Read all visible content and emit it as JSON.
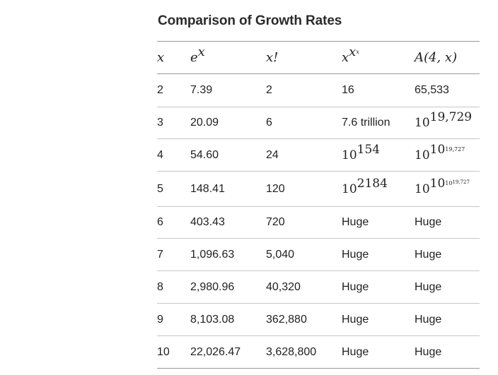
{
  "title": "Comparison of Growth Rates",
  "headers": {
    "x": "x",
    "ex_base": "e",
    "ex_exp": "x",
    "fact": "x!",
    "tet_base": "x",
    "tet_exp1": "x",
    "tet_exp2": "x",
    "ack": "A(4, x)"
  },
  "rows": [
    {
      "x": "2",
      "ex": "7.39",
      "fact": "2",
      "tet": "16",
      "ack": "65,533"
    },
    {
      "x": "3",
      "ex": "20.09",
      "fact": "6",
      "tet": "7.6 trillion",
      "ack_base": "10",
      "ack_exp": "19,729"
    },
    {
      "x": "4",
      "ex": "54.60",
      "fact": "24",
      "tet_base": "10",
      "tet_exp": "154",
      "ack_base": "10",
      "ack_e1": "10",
      "ack_e2": "19,727"
    },
    {
      "x": "5",
      "ex": "148.41",
      "fact": "120",
      "tet_base": "10",
      "tet_exp": "2184",
      "ack_base": "10",
      "ack_e1": "10",
      "ack_e2": "10",
      "ack_e3": "19,727"
    },
    {
      "x": "6",
      "ex": "403.43",
      "fact": "720",
      "tet": "Huge",
      "ack": "Huge"
    },
    {
      "x": "7",
      "ex": "1,096.63",
      "fact": "5,040",
      "tet": "Huge",
      "ack": "Huge"
    },
    {
      "x": "8",
      "ex": "2,980.96",
      "fact": "40,320",
      "tet": "Huge",
      "ack": "Huge"
    },
    {
      "x": "9",
      "ex": "8,103.08",
      "fact": "362,880",
      "tet": "Huge",
      "ack": "Huge"
    },
    {
      "x": "10",
      "ex": "22,026.47",
      "fact": "3,628,800",
      "tet": "Huge",
      "ack": "Huge"
    }
  ]
}
